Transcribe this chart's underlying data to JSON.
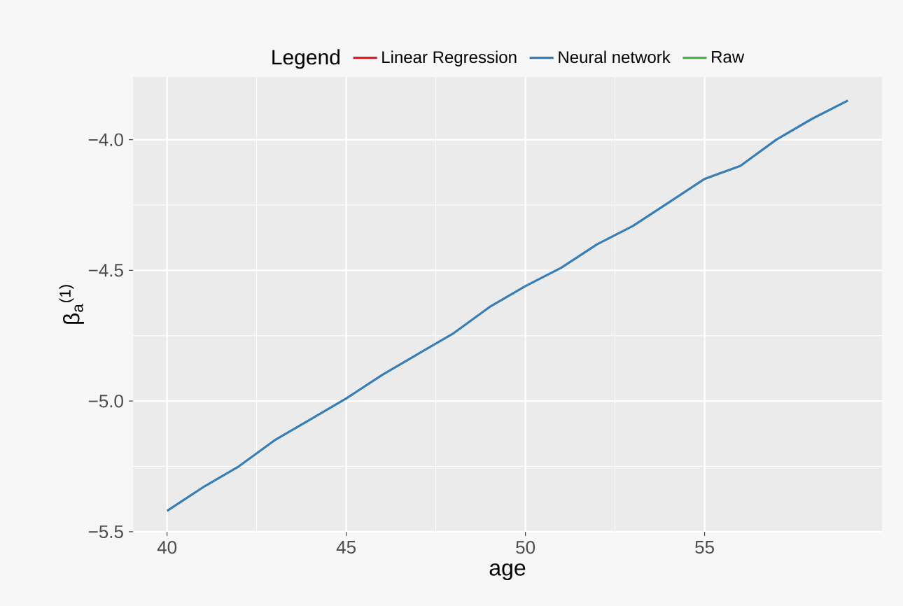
{
  "chart_data": {
    "type": "line",
    "xlabel": "age",
    "ylabel": "β$_{a}$$^{(1)}$",
    "legend_title": "Legend",
    "x": [
      40,
      41,
      42,
      43,
      44,
      45,
      46,
      47,
      48,
      49,
      50,
      51,
      52,
      53,
      54,
      55,
      56,
      57,
      58,
      59
    ],
    "series": [
      {
        "name": "Linear Regression",
        "color": "#e41a1c",
        "values": [
          null,
          null,
          null,
          null,
          null,
          null,
          null,
          null,
          null,
          null,
          null,
          null,
          null,
          null,
          null,
          null,
          null,
          null,
          null,
          null
        ]
      },
      {
        "name": "Neural network",
        "color": "#377eb8",
        "values": [
          -5.42,
          -5.33,
          -5.25,
          -5.15,
          -5.07,
          -4.99,
          -4.9,
          -4.82,
          -4.74,
          -4.64,
          -4.56,
          -4.49,
          -4.4,
          -4.33,
          -4.24,
          -4.15,
          -4.1,
          -4.0,
          -3.92,
          -3.85
        ]
      },
      {
        "name": "Raw",
        "color": "#4daf4a",
        "values": [
          null,
          null,
          null,
          null,
          null,
          null,
          null,
          null,
          null,
          null,
          null,
          null,
          null,
          null,
          null,
          null,
          null,
          null,
          null,
          null
        ]
      }
    ],
    "xlim": [
      39.05,
      59.95
    ],
    "ylim": [
      -5.5,
      -3.76
    ],
    "xticks": [
      40,
      45,
      50,
      55
    ],
    "yticks": [
      {
        "value": -5.5,
        "label": "−5.5"
      },
      {
        "value": -5.0,
        "label": "−5.0"
      },
      {
        "value": -4.5,
        "label": "−4.5"
      },
      {
        "value": -4.0,
        "label": "−4.0"
      }
    ],
    "grid": true,
    "legend": "top"
  }
}
